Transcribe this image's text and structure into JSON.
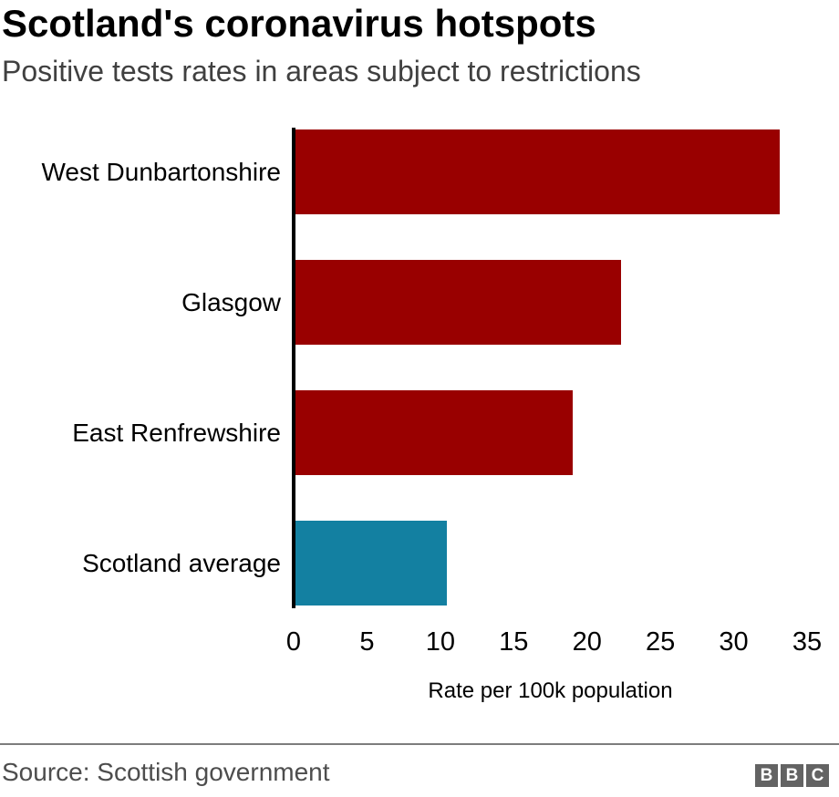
{
  "header": {
    "title": "Scotland's coronavirus hotspots",
    "subtitle": "Positive tests rates in areas subject to restrictions"
  },
  "chart_data": {
    "type": "bar",
    "orientation": "horizontal",
    "title": "Scotland's coronavirus hotspots",
    "subtitle": "Positive tests rates in areas subject to restrictions",
    "categories": [
      "West Dunbartonshire",
      "Glasgow",
      "East Renfrewshire",
      "Scotland average"
    ],
    "values": [
      33,
      22.2,
      18.9,
      10.3
    ],
    "bar_colors": [
      "#990000",
      "#990000",
      "#990000",
      "#1380a1"
    ],
    "xlabel": "Rate per 100k population",
    "ylabel": "",
    "xlim": [
      0,
      35
    ],
    "xticks": [
      0,
      5,
      10,
      15,
      20,
      25,
      30,
      35
    ],
    "grid": false,
    "legend": false
  },
  "footer": {
    "source": "Source: Scottish government",
    "logo_letters": [
      "B",
      "B",
      "C"
    ]
  },
  "colors": {
    "bar_red": "#990000",
    "bar_teal": "#1380a1",
    "title_black": "#000000",
    "subtitle_gray": "#404040",
    "source_gray": "#4d4d4d",
    "divider_gray": "#7d7d7d",
    "logo_gray": "#636363",
    "axis_black": "#000000"
  }
}
